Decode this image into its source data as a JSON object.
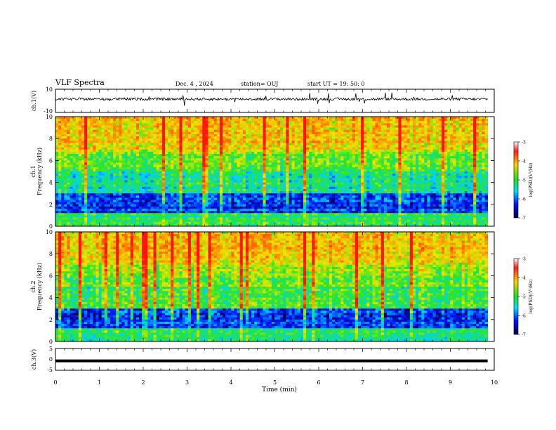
{
  "header": {
    "title": "VLF Spectra",
    "date": "Dec. 4 , 2024",
    "station": "station= OUJ",
    "start": "start UT =  19: 50: 0"
  },
  "colorbar": {
    "label": "log(PSD)(V²/Hz)",
    "ticks": [
      "-3",
      "-4",
      "-5",
      "-6",
      "-7"
    ],
    "range": [
      -7,
      -3
    ]
  },
  "chart_data": [
    {
      "type": "line",
      "panel": "ch1-waveform",
      "ylabel": "ch.1(V)",
      "ylim": [
        -10,
        10
      ],
      "yticks": [
        "10",
        "-10"
      ],
      "x_range_min": [
        0,
        9.85
      ],
      "approx_level_V": 1.5
    },
    {
      "type": "heatmap",
      "panel": "ch1-spectrogram",
      "ylabel": "ch.1\nFrequency (kHz)",
      "ylim": [
        0,
        10
      ],
      "yticks": [
        "10",
        "8",
        "6",
        "4",
        "2",
        "0"
      ],
      "x_range_min": [
        0,
        9.85
      ],
      "color_range_logPSD": [
        -7,
        -3
      ]
    },
    {
      "type": "heatmap",
      "panel": "ch2-spectrogram",
      "ylabel": "ch.2\nFrequency (kHz)",
      "ylim": [
        0,
        10
      ],
      "yticks": [
        "10",
        "8",
        "6",
        "4",
        "2",
        "0"
      ],
      "x_range_min": [
        0,
        9.85
      ],
      "color_range_logPSD": [
        -7,
        -3
      ]
    },
    {
      "type": "line",
      "panel": "ch3-waveform",
      "ylabel": "ch.3(V)",
      "ylim": [
        -5,
        5
      ],
      "yticks": [
        "5",
        "0",
        "-5"
      ],
      "x": [
        0,
        9.85
      ],
      "y": [
        -0.7,
        -0.7
      ]
    }
  ],
  "xaxis": {
    "label": "Time (min)",
    "ticks": [
      "0",
      "1",
      "2",
      "3",
      "4",
      "5",
      "6",
      "7",
      "8",
      "9",
      "10"
    ],
    "range": [
      0,
      10
    ]
  }
}
